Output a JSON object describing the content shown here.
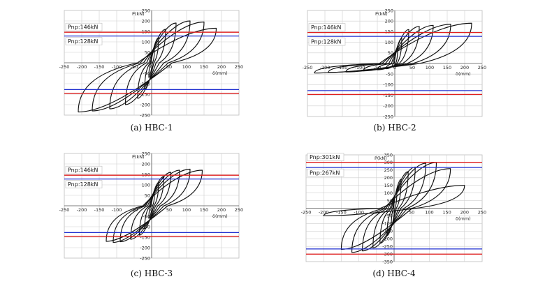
{
  "chart_data": [
    {
      "type": "line",
      "caption": "(a)  HBC-1",
      "xlabel": "δ(mm)",
      "ylabel": "P(kN)",
      "xlim": [
        -250,
        250
      ],
      "ylim": [
        -250,
        250
      ],
      "xticks": [
        -250,
        -200,
        -150,
        -100,
        -50,
        0,
        50,
        100,
        150,
        200,
        250
      ],
      "yticks": [
        -250,
        -200,
        -150,
        -100,
        -50,
        50,
        100,
        150,
        200,
        250
      ],
      "reference_lines": [
        {
          "label": "Pnp:146kN",
          "value": 146,
          "color": "#e02020"
        },
        {
          "label": "Pnp:128kN",
          "value": 128,
          "color": "#2030d0"
        }
      ],
      "envelope": {
        "pos": [
          [
            10,
            60
          ],
          [
            50,
            160
          ],
          [
            100,
            200
          ],
          [
            150,
            195
          ],
          [
            185,
            165
          ]
        ],
        "neg": [
          [
            -10,
            -70
          ],
          [
            -50,
            -170
          ],
          [
            -100,
            -210
          ],
          [
            -150,
            -230
          ],
          [
            -210,
            -240
          ]
        ]
      },
      "loops": [
        [
          8,
          65,
          -8,
          -70
        ],
        [
          20,
          120,
          -20,
          -130
        ],
        [
          40,
          160,
          -40,
          -170
        ],
        [
          70,
          190,
          -75,
          -200
        ],
        [
          110,
          200,
          -120,
          -220
        ],
        [
          150,
          195,
          -170,
          -230
        ],
        [
          185,
          165,
          -210,
          -235
        ]
      ]
    },
    {
      "type": "line",
      "caption": "(b)  HBC-2",
      "xlabel": "δ(mm)",
      "ylabel": "P(kN)",
      "xlim": [
        -250,
        250
      ],
      "ylim": [
        -250,
        250
      ],
      "xticks": [
        -250,
        -200,
        -150,
        -100,
        -50,
        0,
        50,
        100,
        150,
        200,
        250
      ],
      "yticks": [
        -250,
        -200,
        -150,
        -100,
        -50,
        50,
        100,
        150,
        200,
        250
      ],
      "reference_lines": [
        {
          "label": "Pnp:146kN",
          "value": 146,
          "color": "#e02020"
        },
        {
          "label": "Pnp:128kN",
          "value": 128,
          "color": "#2030d0"
        }
      ],
      "envelope": {
        "pos": [
          [
            10,
            70
          ],
          [
            50,
            150
          ],
          [
            100,
            180
          ],
          [
            150,
            185
          ],
          [
            220,
            190
          ]
        ],
        "neg": [
          [
            -10,
            -20
          ],
          [
            -50,
            -30
          ],
          [
            -100,
            -35
          ],
          [
            -150,
            -40
          ],
          [
            -230,
            -45
          ]
        ]
      },
      "loops": [
        [
          8,
          70,
          -8,
          -15
        ],
        [
          20,
          120,
          -25,
          -25
        ],
        [
          40,
          160,
          -50,
          -30
        ],
        [
          70,
          175,
          -90,
          -35
        ],
        [
          110,
          180,
          -140,
          -40
        ],
        [
          160,
          185,
          -190,
          -42
        ],
        [
          220,
          190,
          -230,
          -45
        ]
      ]
    },
    {
      "type": "line",
      "caption": "(c)  HBC-3",
      "xlabel": "δ(mm)",
      "ylabel": "P(kN)",
      "xlim": [
        -250,
        250
      ],
      "ylim": [
        -250,
        250
      ],
      "xticks": [
        -250,
        -200,
        -150,
        -100,
        -50,
        0,
        50,
        100,
        150,
        200,
        250
      ],
      "yticks": [
        -250,
        -200,
        -150,
        -100,
        -50,
        50,
        100,
        150,
        200,
        250
      ],
      "reference_lines": [
        {
          "label": "Pnp:146kN",
          "value": 146,
          "color": "#e02020"
        },
        {
          "label": "Pnp:128kN",
          "value": 128,
          "color": "#2030d0"
        }
      ],
      "envelope": {
        "pos": [
          [
            10,
            60
          ],
          [
            40,
            140
          ],
          [
            80,
            170
          ],
          [
            110,
            175
          ],
          [
            145,
            170
          ]
        ],
        "neg": [
          [
            -10,
            -60
          ],
          [
            -40,
            -140
          ],
          [
            -80,
            -165
          ],
          [
            -100,
            -175
          ],
          [
            -130,
            -170
          ]
        ]
      },
      "loops": [
        [
          8,
          60,
          -8,
          -60
        ],
        [
          20,
          110,
          -20,
          -110
        ],
        [
          35,
          140,
          -35,
          -140
        ],
        [
          55,
          160,
          -60,
          -160
        ],
        [
          80,
          170,
          -90,
          -172
        ],
        [
          110,
          175,
          -110,
          -175
        ],
        [
          145,
          170,
          -130,
          -170
        ]
      ]
    },
    {
      "type": "line",
      "caption": "(d)  HBC-4",
      "xlabel": "δ(mm)",
      "ylabel": "P(kN)",
      "xlim": [
        -250,
        250
      ],
      "ylim": [
        -350,
        350
      ],
      "xticks": [
        -250,
        -200,
        -150,
        -100,
        -50,
        0,
        50,
        100,
        150,
        200,
        250
      ],
      "yticks": [
        -350,
        -300,
        -250,
        -200,
        -150,
        -100,
        -50,
        50,
        100,
        150,
        200,
        250,
        300,
        350
      ],
      "reference_lines": [
        {
          "label": "Pnp:301kN",
          "value": 301,
          "color": "#e02020"
        },
        {
          "label": "Pnp:267kN",
          "value": 267,
          "color": "#2030d0"
        }
      ],
      "envelope": {
        "pos": [
          [
            10,
            120
          ],
          [
            40,
            240
          ],
          [
            80,
            290
          ],
          [
            110,
            300
          ],
          [
            150,
            270
          ],
          [
            200,
            150
          ]
        ],
        "neg": [
          [
            -10,
            -120
          ],
          [
            -40,
            -230
          ],
          [
            -80,
            -270
          ],
          [
            -110,
            -285
          ],
          [
            -150,
            -290
          ],
          [
            -200,
            -50
          ]
        ]
      },
      "loops": [
        [
          8,
          120,
          -8,
          -120
        ],
        [
          20,
          190,
          -20,
          -180
        ],
        [
          40,
          240,
          -40,
          -230
        ],
        [
          60,
          270,
          -60,
          -260
        ],
        [
          90,
          295,
          -90,
          -280
        ],
        [
          120,
          300,
          -120,
          -290
        ],
        [
          160,
          260,
          -150,
          -270
        ],
        [
          200,
          150,
          -200,
          -50
        ]
      ]
    }
  ]
}
